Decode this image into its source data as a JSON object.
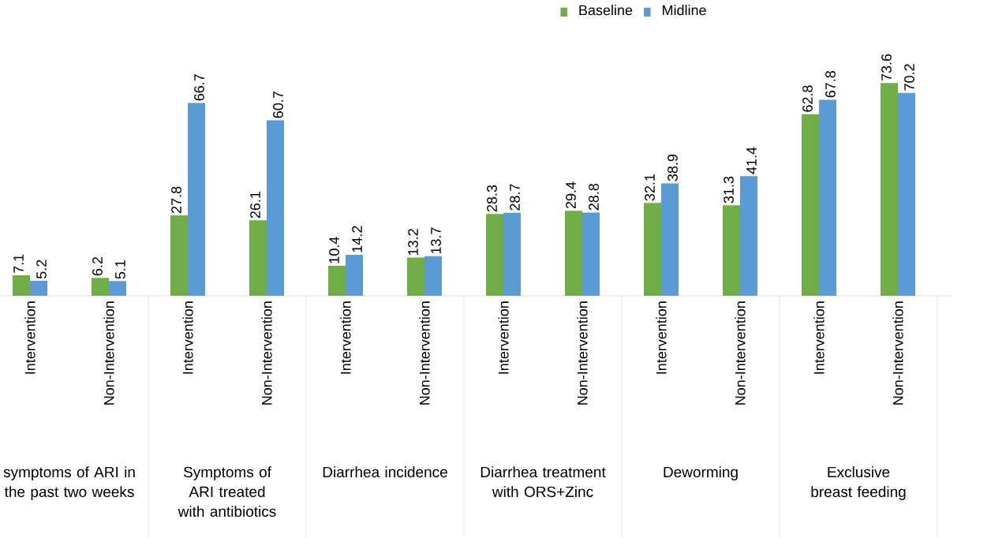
{
  "chart_data": {
    "type": "bar",
    "categories": [
      "Intervention",
      "Non-Intervention",
      "Intervention",
      "Non-Intervention",
      "Intervention",
      "Non-Intervention",
      "Intervention",
      "Non-Intervention",
      "Intervention",
      "Non-Intervention",
      "Intervention",
      "Non-Intervention"
    ],
    "annotations": [
      "symptoms of ARI in the past two weeks",
      "Symptoms of ARI treated with antibiotics",
      "Diarrhea incidence",
      "Diarrhea treatment with ORS+Zinc",
      "Deworming",
      "Exclusive breast feeding"
    ],
    "series": [
      {
        "name": "Baseline",
        "color": "#70ad47",
        "values": [
          7.1,
          6.2,
          27.8,
          26.1,
          10.4,
          13.2,
          28.3,
          29.4,
          32.1,
          31.3,
          62.8,
          73.6
        ]
      },
      {
        "name": "Midline",
        "color": "#5b9bd5",
        "values": [
          5.2,
          5.1,
          66.7,
          60.7,
          14.2,
          13.7,
          28.7,
          28.8,
          38.9,
          41.4,
          67.8,
          70.2
        ]
      }
    ],
    "data_labels": true,
    "legend": "top right"
  }
}
